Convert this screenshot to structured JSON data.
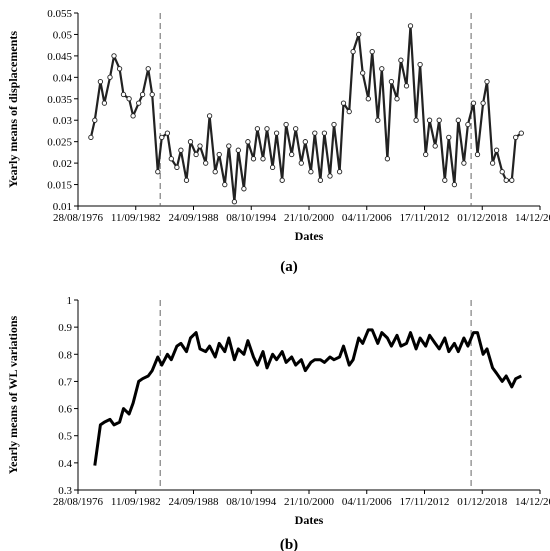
{
  "chart_data": [
    {
      "type": "line",
      "panel_label": "(a)",
      "xlabel": "Dates",
      "ylabel": "Yearly means of displacements",
      "x_ticks": [
        "28/08/1976",
        "11/09/1982",
        "24/09/1988",
        "08/10/1994",
        "21/10/2000",
        "04/11/2006",
        "17/11/2012",
        "01/12/2018",
        "14/12/2024"
      ],
      "y_ticks": [
        "0.01",
        "0.015",
        "0.02",
        "0.025",
        "0.03",
        "0.035",
        "0.04",
        "0.045",
        "0.05",
        "0.055"
      ],
      "xlim": [
        "1976-08-28",
        "2024-12-14"
      ],
      "ylim": [
        0.01,
        0.055
      ],
      "markers": "open-circle",
      "vlines": [
        "1985-04-01",
        "2017-10-01"
      ],
      "series": [
        {
          "x": [
            "1978-01-01",
            "1978-06-01",
            "1979-01-01",
            "1979-06-01",
            "1980-01-01",
            "1980-06-01",
            "1981-01-01",
            "1981-06-01",
            "1982-01-01",
            "1982-06-01",
            "1983-01-01",
            "1983-06-01",
            "1984-01-01",
            "1984-06-01",
            "1985-01-01",
            "1985-06-01",
            "1986-01-01",
            "1986-06-01",
            "1987-01-01",
            "1987-06-01",
            "1988-01-01",
            "1988-06-01",
            "1989-01-01",
            "1989-06-01",
            "1990-01-01",
            "1990-06-01",
            "1991-01-01",
            "1991-06-01",
            "1992-01-01",
            "1992-06-01",
            "1993-01-01",
            "1993-06-01",
            "1994-01-01",
            "1994-06-01",
            "1995-01-01",
            "1995-06-01",
            "1996-01-01",
            "1996-06-01",
            "1997-01-01",
            "1997-06-01",
            "1998-01-01",
            "1998-06-01",
            "1999-01-01",
            "1999-06-01",
            "2000-01-01",
            "2000-06-01",
            "2001-01-01",
            "2001-06-01",
            "2002-01-01",
            "2002-06-01",
            "2003-01-01",
            "2003-06-01",
            "2004-01-01",
            "2004-06-01",
            "2005-01-01",
            "2005-06-01",
            "2006-01-01",
            "2006-06-01",
            "2007-01-01",
            "2007-06-01",
            "2008-01-01",
            "2008-06-01",
            "2009-01-01",
            "2009-06-01",
            "2010-01-01",
            "2010-06-01",
            "2011-01-01",
            "2011-06-01",
            "2012-01-01",
            "2012-06-01",
            "2013-01-01",
            "2013-06-01",
            "2014-01-01",
            "2014-06-01",
            "2015-01-01",
            "2015-06-01",
            "2016-01-01",
            "2016-06-01",
            "2017-01-01",
            "2017-06-01",
            "2018-01-01",
            "2018-06-01",
            "2019-01-01",
            "2019-06-01",
            "2020-01-01",
            "2020-06-01",
            "2021-01-01",
            "2021-06-01",
            "2022-01-01",
            "2022-06-01",
            "2023-01-01"
          ],
          "y": [
            0.026,
            0.03,
            0.039,
            0.034,
            0.04,
            0.045,
            0.042,
            0.036,
            0.035,
            0.031,
            0.034,
            0.036,
            0.042,
            0.036,
            0.018,
            0.026,
            0.027,
            0.021,
            0.019,
            0.023,
            0.016,
            0.025,
            0.022,
            0.024,
            0.02,
            0.031,
            0.018,
            0.022,
            0.015,
            0.024,
            0.011,
            0.023,
            0.014,
            0.025,
            0.021,
            0.028,
            0.021,
            0.028,
            0.019,
            0.027,
            0.016,
            0.029,
            0.022,
            0.028,
            0.02,
            0.025,
            0.018,
            0.027,
            0.016,
            0.027,
            0.017,
            0.029,
            0.018,
            0.034,
            0.032,
            0.046,
            0.05,
            0.041,
            0.035,
            0.046,
            0.03,
            0.042,
            0.021,
            0.039,
            0.035,
            0.044,
            0.038,
            0.052,
            0.03,
            0.043,
            0.022,
            0.03,
            0.024,
            0.03,
            0.016,
            0.026,
            0.015,
            0.03,
            0.02,
            0.029,
            0.034,
            0.022,
            0.034,
            0.039,
            0.02,
            0.023,
            0.018,
            0.016,
            0.016,
            0.026,
            0.027
          ]
        }
      ]
    },
    {
      "type": "line",
      "panel_label": "(b)",
      "xlabel": "Dates",
      "ylabel": "Yearly means of WL variations",
      "x_ticks": [
        "28/08/1976",
        "11/09/1982",
        "24/09/1988",
        "08/10/1994",
        "21/10/2000",
        "04/11/2006",
        "17/11/2012",
        "01/12/2018",
        "14/12/2024"
      ],
      "y_ticks": [
        "0.3",
        "0.4",
        "0.5",
        "0.6",
        "0.7",
        "0.8",
        "0.9",
        "1"
      ],
      "xlim": [
        "1976-08-28",
        "2024-12-14"
      ],
      "ylim": [
        0.3,
        1.0
      ],
      "vlines": [
        "1985-04-01",
        "2017-10-01"
      ],
      "series": [
        {
          "x": [
            "1978-06-01",
            "1979-01-01",
            "1979-06-01",
            "1980-01-01",
            "1980-06-01",
            "1981-01-01",
            "1981-06-01",
            "1982-01-01",
            "1982-06-01",
            "1983-01-01",
            "1983-06-01",
            "1984-01-01",
            "1984-06-01",
            "1985-01-01",
            "1985-06-01",
            "1986-01-01",
            "1986-06-01",
            "1987-01-01",
            "1987-06-01",
            "1988-01-01",
            "1988-06-01",
            "1989-01-01",
            "1989-06-01",
            "1990-01-01",
            "1990-06-01",
            "1991-01-01",
            "1991-06-01",
            "1992-01-01",
            "1992-06-01",
            "1993-01-01",
            "1993-06-01",
            "1994-01-01",
            "1994-06-01",
            "1995-01-01",
            "1995-06-01",
            "1996-01-01",
            "1996-06-01",
            "1997-01-01",
            "1997-06-01",
            "1998-01-01",
            "1998-06-01",
            "1999-01-01",
            "1999-06-01",
            "2000-01-01",
            "2000-06-01",
            "2001-01-01",
            "2001-06-01",
            "2002-01-01",
            "2002-06-01",
            "2003-01-01",
            "2003-06-01",
            "2004-01-01",
            "2004-06-01",
            "2005-01-01",
            "2005-06-01",
            "2006-01-01",
            "2006-06-01",
            "2007-01-01",
            "2007-06-01",
            "2008-01-01",
            "2008-06-01",
            "2009-01-01",
            "2009-06-01",
            "2010-01-01",
            "2010-06-01",
            "2011-01-01",
            "2011-06-01",
            "2012-01-01",
            "2012-06-01",
            "2013-01-01",
            "2013-06-01",
            "2014-01-01",
            "2014-06-01",
            "2015-01-01",
            "2015-06-01",
            "2016-01-01",
            "2016-06-01",
            "2017-01-01",
            "2017-06-01",
            "2018-01-01",
            "2018-06-01",
            "2019-01-01",
            "2019-06-01",
            "2020-01-01",
            "2020-06-01",
            "2021-01-01",
            "2021-06-01",
            "2022-01-01",
            "2022-06-01",
            "2023-01-01"
          ],
          "y": [
            0.39,
            0.54,
            0.55,
            0.56,
            0.54,
            0.55,
            0.6,
            0.58,
            0.62,
            0.7,
            0.71,
            0.72,
            0.74,
            0.79,
            0.76,
            0.8,
            0.78,
            0.83,
            0.84,
            0.81,
            0.86,
            0.88,
            0.82,
            0.81,
            0.83,
            0.79,
            0.84,
            0.81,
            0.86,
            0.78,
            0.82,
            0.8,
            0.85,
            0.79,
            0.76,
            0.81,
            0.75,
            0.8,
            0.78,
            0.81,
            0.77,
            0.79,
            0.76,
            0.78,
            0.74,
            0.77,
            0.78,
            0.78,
            0.77,
            0.79,
            0.78,
            0.79,
            0.83,
            0.76,
            0.78,
            0.86,
            0.84,
            0.89,
            0.89,
            0.84,
            0.88,
            0.86,
            0.83,
            0.87,
            0.83,
            0.84,
            0.88,
            0.82,
            0.86,
            0.83,
            0.87,
            0.84,
            0.82,
            0.86,
            0.81,
            0.84,
            0.81,
            0.86,
            0.83,
            0.88,
            0.88,
            0.8,
            0.82,
            0.75,
            0.73,
            0.7,
            0.72,
            0.68,
            0.71,
            0.72
          ]
        }
      ]
    }
  ]
}
